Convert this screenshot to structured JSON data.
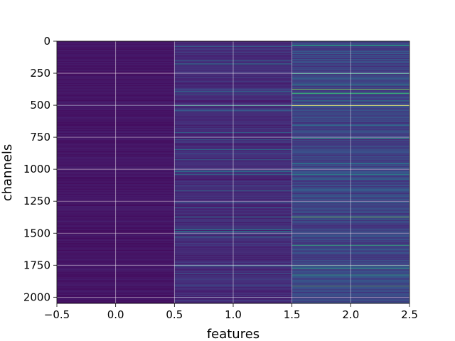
{
  "chart_data": {
    "type": "heatmap",
    "title": "",
    "xlabel": "features",
    "ylabel": "channels",
    "xlim": [
      -0.5,
      2.5
    ],
    "ylim": [
      2048,
      0
    ],
    "x_ticks": [
      -0.5,
      0.0,
      0.5,
      1.0,
      1.5,
      2.0,
      2.5
    ],
    "x_tick_labels": [
      "−0.5",
      "0.0",
      "0.5",
      "1.0",
      "1.5",
      "2.0",
      "2.5"
    ],
    "y_ticks": [
      0,
      250,
      500,
      750,
      1000,
      1250,
      1500,
      1750,
      2000
    ],
    "y_tick_labels": [
      "0",
      "250",
      "500",
      "750",
      "1000",
      "1250",
      "1500",
      "1750",
      "2000"
    ],
    "grid": true,
    "colormap": "viridis",
    "colors": [
      "#440154",
      "#472c7a",
      "#3b518b",
      "#2c718e",
      "#21908d",
      "#27ad81",
      "#5cc863",
      "#aadc32",
      "#fde725"
    ],
    "n_channels": 2048,
    "columns": [
      0,
      1,
      2
    ],
    "highlight_rows": [
      {
        "channel": 500,
        "values": [
          0.15,
          0.55,
          0.95
        ]
      },
      {
        "channel": 1370,
        "values": [
          0.05,
          0.45,
          0.8
        ]
      },
      {
        "channel": 1750,
        "values": [
          0.05,
          0.45,
          0.6
        ]
      },
      {
        "channel": 370,
        "values": [
          0.05,
          0.3,
          0.85
        ]
      },
      {
        "channel": 1040,
        "values": [
          0.05,
          0.4,
          0.55
        ]
      },
      {
        "channel": 1910,
        "values": [
          0.05,
          0.2,
          0.7
        ]
      },
      {
        "channel": 1260,
        "values": [
          0.12,
          0.2,
          0.35
        ]
      },
      {
        "channel": 700,
        "values": [
          0.1,
          0.15,
          0.4
        ]
      }
    ]
  }
}
